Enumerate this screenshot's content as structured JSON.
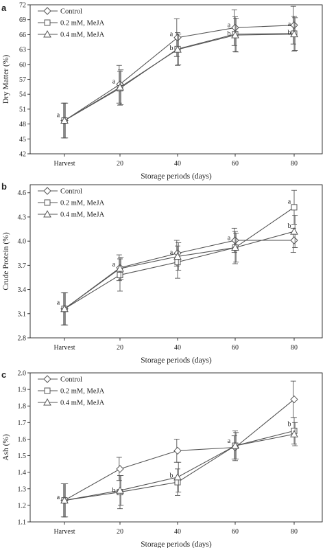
{
  "colors": {
    "axis": "#222222",
    "series": "#555555"
  },
  "chart_data": [
    {
      "type": "line",
      "panel_letter": "a",
      "categories": [
        "Harvest",
        "20",
        "40",
        "60",
        "80"
      ],
      "xlabel": "Storage periods (days)",
      "ylabel": "Dry Matter (%)",
      "ylim": [
        42,
        72
      ],
      "yticks": [
        42,
        45,
        48,
        51,
        54,
        57,
        60,
        63,
        66,
        69,
        72
      ],
      "yticklabels": [
        "42",
        "45",
        "48",
        "51",
        "54",
        "57",
        "60",
        "63",
        "66",
        "69",
        "72"
      ],
      "legend_position": "top-left",
      "series": [
        {
          "name": "Control",
          "marker": "diamond",
          "values": [
            48.7,
            56.0,
            65.4,
            67.4,
            67.9
          ],
          "errors": [
            3.5,
            3.8,
            3.8,
            3.6,
            3.8
          ]
        },
        {
          "name": "0.2 mM, MeJA",
          "marker": "square",
          "values": [
            48.7,
            55.2,
            63.1,
            66.1,
            66.2
          ],
          "errors": [
            3.5,
            3.4,
            3.3,
            3.5,
            3.5
          ]
        },
        {
          "name": "0.4 mM, MeJA",
          "marker": "triangle",
          "values": [
            48.7,
            55.4,
            63.0,
            65.9,
            66.1
          ],
          "errors": [
            3.5,
            3.5,
            3.1,
            3.4,
            3.3
          ]
        }
      ],
      "significance_labels": [
        {
          "x": "Harvest",
          "y": 49.8,
          "text": "a"
        },
        {
          "x": "20",
          "y": 56.6,
          "text": "a"
        },
        {
          "x": "40",
          "y": 66.1,
          "text": "a"
        },
        {
          "x": "40",
          "y": 63.3,
          "text": "b"
        },
        {
          "x": "60",
          "y": 67.9,
          "text": "a"
        },
        {
          "x": "60",
          "y": 66.2,
          "text": "b"
        },
        {
          "x": "80",
          "y": 68.1,
          "text": "a"
        },
        {
          "x": "80",
          "y": 66.4,
          "text": "b"
        }
      ]
    },
    {
      "type": "line",
      "panel_letter": "b",
      "categories": [
        "Harvest",
        "20",
        "40",
        "60",
        "80"
      ],
      "xlabel": "Storage periods (days)",
      "ylabel": "Crude Protein (%)",
      "ylim": [
        2.8,
        4.7
      ],
      "yticks": [
        2.8,
        3.1,
        3.4,
        3.7,
        4.0,
        4.3,
        4.6
      ],
      "yticklabels": [
        "2.8",
        "3.1",
        "3.4",
        "3.7",
        "4.0",
        "4.3",
        "4.6"
      ],
      "legend_position": "top-left",
      "series": [
        {
          "name": "Control",
          "marker": "diamond",
          "values": [
            3.16,
            3.67,
            3.85,
            4.01,
            4.01
          ],
          "errors": [
            0.2,
            0.16,
            0.16,
            0.15,
            0.15
          ]
        },
        {
          "name": "0.2 mM, MeJA",
          "marker": "square",
          "values": [
            3.16,
            3.58,
            3.74,
            3.92,
            4.42
          ],
          "errors": [
            0.2,
            0.2,
            0.2,
            0.2,
            0.21
          ]
        },
        {
          "name": "0.4 mM, MeJA",
          "marker": "triangle",
          "values": [
            3.16,
            3.66,
            3.81,
            3.92,
            4.12
          ],
          "errors": [
            0.2,
            0.14,
            0.17,
            0.18,
            0.2
          ]
        }
      ],
      "significance_labels": [
        {
          "x": "Harvest",
          "y": 3.24,
          "text": "a"
        },
        {
          "x": "20",
          "y": 3.71,
          "text": "a"
        },
        {
          "x": "40",
          "y": 3.86,
          "text": "a"
        },
        {
          "x": "60",
          "y": 4.04,
          "text": "a"
        },
        {
          "x": "80",
          "y": 4.49,
          "text": "a"
        },
        {
          "x": "80",
          "y": 4.19,
          "text": "b"
        }
      ]
    },
    {
      "type": "line",
      "panel_letter": "c",
      "categories": [
        "Harvest",
        "20",
        "40",
        "60",
        "80"
      ],
      "xlabel": "Storage periods (days)",
      "ylabel": "Ash (%)",
      "ylim": [
        1.1,
        2.0
      ],
      "yticks": [
        1.1,
        1.2,
        1.3,
        1.4,
        1.5,
        1.6,
        1.7,
        1.8,
        1.9,
        2.0
      ],
      "yticklabels": [
        "1.1",
        "1.2",
        "1.3",
        "1.4",
        "1.5",
        "1.6",
        "1.7",
        "1.8",
        "1.9",
        "2.0"
      ],
      "legend_position": "top-left",
      "series": [
        {
          "name": "Control",
          "marker": "diamond",
          "values": [
            1.23,
            1.42,
            1.53,
            1.55,
            1.84
          ],
          "errors": [
            0.1,
            0.07,
            0.07,
            0.07,
            0.11
          ]
        },
        {
          "name": "0.2 mM, MeJA",
          "marker": "square",
          "values": [
            1.23,
            1.28,
            1.34,
            1.56,
            1.65
          ],
          "errors": [
            0.1,
            0.1,
            0.08,
            0.09,
            0.08
          ]
        },
        {
          "name": "0.4 mM, MeJA",
          "marker": "triangle",
          "values": [
            1.23,
            1.29,
            1.37,
            1.56,
            1.63
          ],
          "errors": [
            0.1,
            0.09,
            0.09,
            0.08,
            0.07
          ]
        }
      ],
      "significance_labels": [
        {
          "x": "Harvest",
          "y": 1.25,
          "text": "a"
        },
        {
          "x": "20",
          "y": 1.29,
          "text": "b"
        },
        {
          "x": "40",
          "y": 1.38,
          "text": "b"
        },
        {
          "x": "60",
          "y": 1.59,
          "text": "a"
        },
        {
          "x": "80",
          "y": 1.69,
          "text": "b"
        }
      ]
    }
  ]
}
